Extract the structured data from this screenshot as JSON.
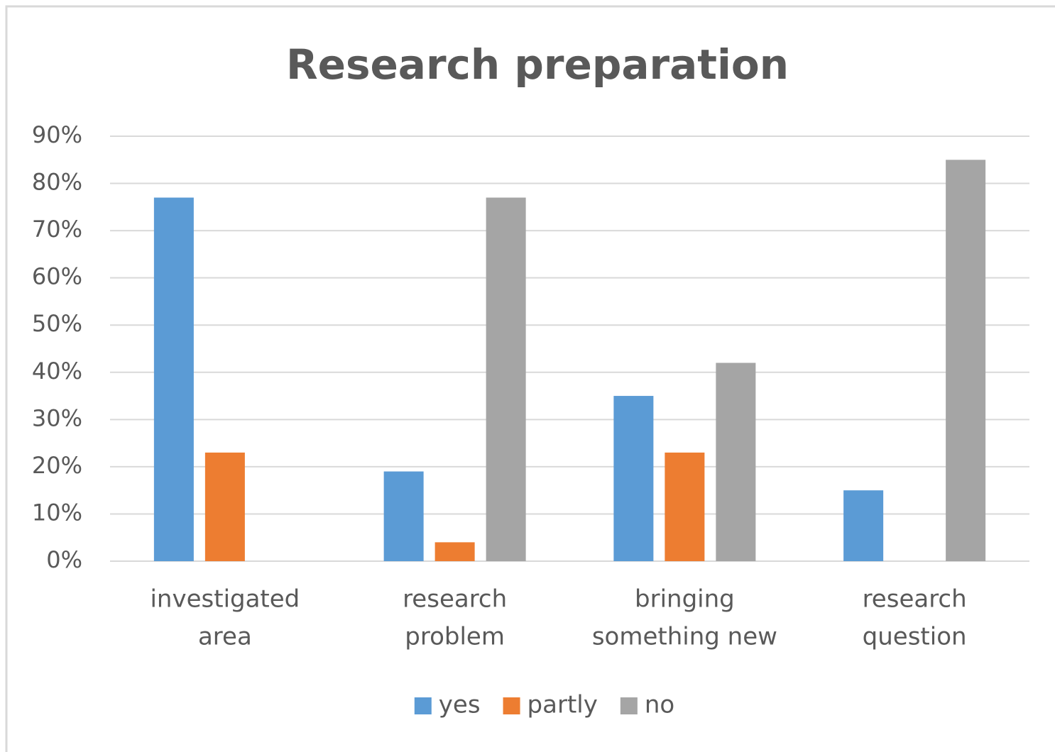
{
  "chart_data": {
    "type": "bar",
    "title": "Research preparation",
    "categories": [
      [
        "investigated",
        "area"
      ],
      [
        "research",
        "problem"
      ],
      [
        "bringing",
        "something new"
      ],
      [
        "research",
        "question"
      ]
    ],
    "series": [
      {
        "name": "yes",
        "color": "#5b9bd5",
        "values": [
          77,
          19,
          35,
          15
        ]
      },
      {
        "name": "partly",
        "color": "#ed7d31",
        "values": [
          23,
          4,
          23,
          0
        ]
      },
      {
        "name": "no",
        "color": "#a5a5a5",
        "values": [
          0,
          77,
          42,
          85
        ]
      }
    ],
    "ylim": [
      0,
      90
    ],
    "yticks": [
      {
        "value": 0,
        "label": "0%"
      },
      {
        "value": 10,
        "label": "10%"
      },
      {
        "value": 20,
        "label": "20%"
      },
      {
        "value": 30,
        "label": "30%"
      },
      {
        "value": 40,
        "label": "40%"
      },
      {
        "value": 50,
        "label": "50%"
      },
      {
        "value": 60,
        "label": "60%"
      },
      {
        "value": 70,
        "label": "70%"
      },
      {
        "value": 80,
        "label": "80%"
      },
      {
        "value": 90,
        "label": "90%"
      }
    ],
    "grid": true,
    "legend": "bottom"
  }
}
